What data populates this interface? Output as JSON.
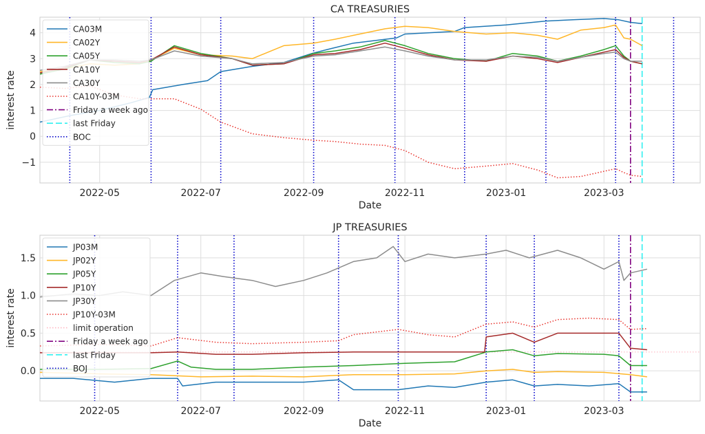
{
  "chart_data": [
    {
      "type": "line",
      "title": "CA TREASURIES",
      "xlabel": "Date",
      "ylabel": "interest rate",
      "xlim": [
        "2022-03-26",
        "2023-04-28"
      ],
      "ylim": [
        -1.8,
        4.6
      ],
      "yticks": [
        -1,
        0,
        1,
        2,
        3,
        4
      ],
      "ytick_labels": [
        "−1",
        "0",
        "1",
        "2",
        "3",
        "4"
      ],
      "xticks": [
        "2022-05-01",
        "2022-07-01",
        "2022-09-01",
        "2022-11-01",
        "2023-01-01",
        "2023-03-01"
      ],
      "xtick_labels": [
        "2022-05",
        "2022-07",
        "2022-09",
        "2022-11",
        "2023-01",
        "2023-03"
      ],
      "grid": true,
      "legend_position": "upper-left",
      "series": [
        {
          "name": "CA03M",
          "color": "#1f77b4",
          "style": "solid",
          "x": [
            "2022-03-26",
            "2022-04-13",
            "2022-05-01",
            "2022-05-20",
            "2022-05-31",
            "2022-06-02",
            "2022-06-20",
            "2022-07-05",
            "2022-07-13",
            "2022-08-01",
            "2022-08-20",
            "2022-09-06",
            "2022-09-15",
            "2022-10-01",
            "2022-10-27",
            "2022-11-01",
            "2022-12-01",
            "2022-12-07",
            "2023-01-01",
            "2023-01-25",
            "2023-02-10",
            "2023-03-01",
            "2023-03-10",
            "2023-03-17",
            "2023-03-24"
          ],
          "y": [
            0.55,
            0.8,
            1.0,
            1.3,
            1.5,
            1.8,
            2.0,
            2.15,
            2.5,
            2.7,
            2.85,
            3.2,
            3.35,
            3.6,
            3.8,
            3.95,
            4.05,
            4.2,
            4.3,
            4.45,
            4.5,
            4.55,
            4.5,
            4.4,
            4.35
          ]
        },
        {
          "name": "CA02Y",
          "color": "#ffb627",
          "style": "solid",
          "x": [
            "2022-03-26",
            "2022-04-10",
            "2022-04-25",
            "2022-05-10",
            "2022-05-25",
            "2022-06-01",
            "2022-06-15",
            "2022-07-01",
            "2022-07-20",
            "2022-08-01",
            "2022-08-20",
            "2022-09-07",
            "2022-09-20",
            "2022-10-01",
            "2022-10-20",
            "2022-11-01",
            "2022-11-15",
            "2022-12-01",
            "2022-12-20",
            "2023-01-05",
            "2023-01-20",
            "2023-02-01",
            "2023-02-15",
            "2023-03-01",
            "2023-03-08",
            "2023-03-13",
            "2023-03-17",
            "2023-03-24"
          ],
          "y": [
            2.5,
            2.6,
            2.8,
            2.75,
            2.8,
            2.95,
            3.4,
            3.15,
            3.1,
            3.0,
            3.5,
            3.6,
            3.75,
            3.9,
            4.15,
            4.25,
            4.2,
            4.05,
            3.95,
            4.0,
            3.9,
            3.75,
            4.1,
            4.2,
            4.3,
            3.8,
            3.75,
            3.5
          ]
        },
        {
          "name": "CA05Y",
          "color": "#2ca02c",
          "style": "solid",
          "x": [
            "2022-03-26",
            "2022-04-10",
            "2022-04-25",
            "2022-05-10",
            "2022-05-25",
            "2022-06-01",
            "2022-06-15",
            "2022-07-01",
            "2022-07-20",
            "2022-08-01",
            "2022-08-20",
            "2022-09-07",
            "2022-09-20",
            "2022-10-05",
            "2022-10-20",
            "2022-11-01",
            "2022-11-15",
            "2022-12-01",
            "2022-12-20",
            "2023-01-05",
            "2023-01-20",
            "2023-02-01",
            "2023-02-15",
            "2023-03-01",
            "2023-03-08",
            "2023-03-13",
            "2023-03-17",
            "2023-03-24"
          ],
          "y": [
            2.4,
            2.6,
            2.95,
            2.85,
            2.8,
            2.9,
            3.5,
            3.2,
            3.0,
            2.75,
            2.8,
            3.2,
            3.3,
            3.45,
            3.7,
            3.5,
            3.2,
            3.0,
            2.9,
            3.2,
            3.1,
            2.9,
            3.1,
            3.35,
            3.5,
            3.1,
            2.9,
            2.8
          ]
        },
        {
          "name": "CA10Y",
          "color": "#a52a2a",
          "style": "solid",
          "x": [
            "2022-03-26",
            "2022-04-10",
            "2022-04-25",
            "2022-05-10",
            "2022-05-25",
            "2022-06-01",
            "2022-06-15",
            "2022-07-01",
            "2022-07-20",
            "2022-08-01",
            "2022-08-20",
            "2022-09-07",
            "2022-09-20",
            "2022-10-05",
            "2022-10-20",
            "2022-11-01",
            "2022-11-15",
            "2022-12-01",
            "2022-12-20",
            "2023-01-05",
            "2023-01-20",
            "2023-02-01",
            "2023-02-15",
            "2023-03-01",
            "2023-03-08",
            "2023-03-13",
            "2023-03-17",
            "2023-03-24"
          ],
          "y": [
            2.45,
            2.65,
            2.95,
            2.9,
            2.85,
            2.95,
            3.45,
            3.15,
            3.0,
            2.75,
            2.8,
            3.15,
            3.2,
            3.35,
            3.6,
            3.4,
            3.15,
            2.95,
            2.9,
            3.1,
            3.0,
            2.85,
            3.05,
            3.25,
            3.35,
            3.05,
            2.9,
            2.8
          ]
        },
        {
          "name": "CA30Y",
          "color": "#8c8c8c",
          "style": "solid",
          "x": [
            "2022-03-26",
            "2022-04-10",
            "2022-04-25",
            "2022-05-10",
            "2022-05-25",
            "2022-06-01",
            "2022-06-15",
            "2022-07-01",
            "2022-07-20",
            "2022-08-01",
            "2022-08-20",
            "2022-09-07",
            "2022-09-20",
            "2022-10-05",
            "2022-10-20",
            "2022-11-01",
            "2022-11-15",
            "2022-12-01",
            "2022-12-20",
            "2023-01-05",
            "2023-01-20",
            "2023-02-01",
            "2023-02-15",
            "2023-03-01",
            "2023-03-08",
            "2023-03-13",
            "2023-03-17",
            "2023-03-24"
          ],
          "y": [
            2.55,
            2.7,
            2.95,
            2.95,
            2.9,
            2.95,
            3.3,
            3.1,
            3.0,
            2.8,
            2.85,
            3.1,
            3.15,
            3.3,
            3.45,
            3.3,
            3.1,
            2.95,
            2.95,
            3.1,
            3.05,
            2.9,
            3.05,
            3.2,
            3.25,
            3.0,
            2.9,
            2.9
          ]
        },
        {
          "name": "CA10Y-03M",
          "color": "#e8302a",
          "style": "dotted",
          "x": [
            "2022-03-26",
            "2022-04-10",
            "2022-04-25",
            "2022-05-10",
            "2022-05-25",
            "2022-06-01",
            "2022-06-15",
            "2022-07-01",
            "2022-07-13",
            "2022-08-01",
            "2022-08-20",
            "2022-09-07",
            "2022-09-20",
            "2022-10-05",
            "2022-10-20",
            "2022-11-01",
            "2022-11-15",
            "2022-12-01",
            "2022-12-20",
            "2023-01-05",
            "2023-01-20",
            "2023-02-01",
            "2023-02-15",
            "2023-03-01",
            "2023-03-08",
            "2023-03-13",
            "2023-03-17",
            "2023-03-24"
          ],
          "y": [
            1.9,
            1.85,
            1.95,
            1.6,
            1.45,
            1.45,
            1.45,
            1.05,
            0.55,
            0.1,
            -0.05,
            -0.15,
            -0.2,
            -0.3,
            -0.35,
            -0.55,
            -1.0,
            -1.25,
            -1.15,
            -1.05,
            -1.3,
            -1.6,
            -1.55,
            -1.35,
            -1.25,
            -1.4,
            -1.5,
            -1.55
          ]
        }
      ],
      "events": [
        {
          "name": "Friday a week ago",
          "x": "2023-03-17",
          "color": "#800080",
          "style": "dashdot"
        },
        {
          "name": "last Friday",
          "x": "2023-03-24",
          "color": "#2ff0f0",
          "style": "dashed"
        },
        {
          "name": "BOC",
          "x": [
            "2022-04-13",
            "2022-06-01",
            "2022-07-13",
            "2022-09-07",
            "2022-10-26",
            "2022-12-07",
            "2023-01-25",
            "2023-03-08",
            "2023-04-12"
          ],
          "color": "#0000cc",
          "style": "dotted"
        }
      ]
    },
    {
      "type": "line",
      "title": "JP TREASURIES",
      "xlabel": "Date",
      "ylabel": "interest rate",
      "xlim": [
        "2022-03-26",
        "2023-04-28"
      ],
      "ylim": [
        -0.4,
        1.8
      ],
      "yticks": [
        0.0,
        0.5,
        1.0,
        1.5
      ],
      "ytick_labels": [
        "0.0",
        "0.5",
        "1.0",
        "1.5"
      ],
      "xticks": [
        "2022-05-01",
        "2022-07-01",
        "2022-09-01",
        "2022-11-01",
        "2023-01-01",
        "2023-03-01"
      ],
      "xtick_labels": [
        "2022-05",
        "2022-07",
        "2022-09",
        "2022-11",
        "2023-01",
        "2023-03"
      ],
      "grid": true,
      "legend_position": "upper-left",
      "series": [
        {
          "name": "JP03M",
          "color": "#1f77b4",
          "style": "solid",
          "x": [
            "2022-03-26",
            "2022-04-15",
            "2022-05-10",
            "2022-06-01",
            "2022-06-17",
            "2022-06-20",
            "2022-07-10",
            "2022-08-01",
            "2022-09-01",
            "2022-09-22",
            "2022-10-01",
            "2022-10-28",
            "2022-11-15",
            "2022-12-01",
            "2022-12-20",
            "2023-01-05",
            "2023-01-18",
            "2023-02-01",
            "2023-02-20",
            "2023-03-10",
            "2023-03-17",
            "2023-03-27"
          ],
          "y": [
            -0.1,
            -0.1,
            -0.15,
            -0.1,
            -0.1,
            -0.2,
            -0.15,
            -0.15,
            -0.15,
            -0.12,
            -0.25,
            -0.25,
            -0.2,
            -0.22,
            -0.15,
            -0.12,
            -0.2,
            -0.18,
            -0.2,
            -0.17,
            -0.28,
            -0.28
          ]
        },
        {
          "name": "JP02Y",
          "color": "#ffb627",
          "style": "solid",
          "x": [
            "2022-03-26",
            "2022-05-01",
            "2022-06-01",
            "2022-07-01",
            "2022-08-01",
            "2022-09-01",
            "2022-10-01",
            "2022-11-01",
            "2022-12-01",
            "2022-12-20",
            "2023-01-05",
            "2023-01-18",
            "2023-02-01",
            "2023-03-01",
            "2023-03-17",
            "2023-03-27"
          ],
          "y": [
            -0.02,
            -0.04,
            -0.05,
            -0.08,
            -0.07,
            -0.08,
            -0.05,
            -0.05,
            -0.04,
            0.0,
            0.02,
            -0.02,
            -0.01,
            -0.02,
            -0.05,
            -0.08
          ]
        },
        {
          "name": "JP05Y",
          "color": "#2ca02c",
          "style": "solid",
          "x": [
            "2022-03-26",
            "2022-05-01",
            "2022-06-01",
            "2022-06-17",
            "2022-06-25",
            "2022-07-10",
            "2022-08-01",
            "2022-09-01",
            "2022-10-01",
            "2022-11-01",
            "2022-12-01",
            "2022-12-20",
            "2023-01-05",
            "2023-01-18",
            "2023-02-01",
            "2023-03-01",
            "2023-03-10",
            "2023-03-17",
            "2023-03-27"
          ],
          "y": [
            0.02,
            0.02,
            0.03,
            0.13,
            0.05,
            0.02,
            0.02,
            0.05,
            0.07,
            0.1,
            0.12,
            0.25,
            0.28,
            0.2,
            0.23,
            0.22,
            0.2,
            0.07,
            0.07
          ]
        },
        {
          "name": "JP10Y",
          "color": "#a52a2a",
          "style": "solid",
          "x": [
            "2022-03-26",
            "2022-05-01",
            "2022-06-01",
            "2022-06-17",
            "2022-07-10",
            "2022-08-01",
            "2022-09-01",
            "2022-10-01",
            "2022-11-01",
            "2022-12-01",
            "2022-12-19",
            "2022-12-20",
            "2023-01-05",
            "2023-01-18",
            "2023-02-01",
            "2023-03-01",
            "2023-03-10",
            "2023-03-17",
            "2023-03-27"
          ],
          "y": [
            0.24,
            0.24,
            0.24,
            0.25,
            0.22,
            0.22,
            0.24,
            0.25,
            0.25,
            0.25,
            0.25,
            0.45,
            0.5,
            0.38,
            0.5,
            0.5,
            0.5,
            0.3,
            0.28
          ]
        },
        {
          "name": "JP30Y",
          "color": "#8c8c8c",
          "style": "solid",
          "x": [
            "2022-03-26",
            "2022-04-15",
            "2022-05-01",
            "2022-05-15",
            "2022-06-01",
            "2022-06-15",
            "2022-07-01",
            "2022-07-15",
            "2022-08-01",
            "2022-08-15",
            "2022-09-01",
            "2022-09-15",
            "2022-10-01",
            "2022-10-15",
            "2022-10-25",
            "2022-11-01",
            "2022-11-15",
            "2022-12-01",
            "2022-12-20",
            "2023-01-01",
            "2023-01-15",
            "2023-02-01",
            "2023-02-15",
            "2023-03-01",
            "2023-03-10",
            "2023-03-13",
            "2023-03-17",
            "2023-03-27"
          ],
          "y": [
            0.98,
            1.02,
            1.0,
            1.05,
            1.0,
            1.2,
            1.3,
            1.25,
            1.2,
            1.12,
            1.2,
            1.3,
            1.45,
            1.5,
            1.65,
            1.45,
            1.55,
            1.5,
            1.55,
            1.6,
            1.5,
            1.6,
            1.5,
            1.35,
            1.45,
            1.2,
            1.3,
            1.35
          ]
        },
        {
          "name": "JP10Y-03M",
          "color": "#e8302a",
          "style": "dotted",
          "x": [
            "2022-03-26",
            "2022-05-01",
            "2022-06-01",
            "2022-06-17",
            "2022-07-10",
            "2022-08-01",
            "2022-09-01",
            "2022-09-22",
            "2022-10-01",
            "2022-10-28",
            "2022-11-15",
            "2022-12-01",
            "2022-12-20",
            "2023-01-05",
            "2023-01-18",
            "2023-02-01",
            "2023-02-20",
            "2023-03-10",
            "2023-03-17",
            "2023-03-27"
          ],
          "y": [
            0.33,
            0.35,
            0.33,
            0.44,
            0.38,
            0.36,
            0.38,
            0.4,
            0.48,
            0.55,
            0.48,
            0.45,
            0.62,
            0.65,
            0.58,
            0.68,
            0.7,
            0.68,
            0.55,
            0.56
          ]
        }
      ],
      "hlines": [
        {
          "name": "limit operation",
          "y": 0.25,
          "color": "#ffb6c1",
          "style": "dotted"
        }
      ],
      "events": [
        {
          "name": "Friday a week ago",
          "x": "2023-03-17",
          "color": "#800080",
          "style": "dashdot"
        },
        {
          "name": "last Friday",
          "x": "2023-03-24",
          "color": "#2ff0f0",
          "style": "dashed"
        },
        {
          "name": "BOJ",
          "x": [
            "2022-04-28",
            "2022-06-17",
            "2022-07-21",
            "2022-09-22",
            "2022-10-28",
            "2022-12-20",
            "2023-01-18",
            "2023-03-10"
          ],
          "color": "#0000cc",
          "style": "dotted"
        }
      ]
    }
  ]
}
